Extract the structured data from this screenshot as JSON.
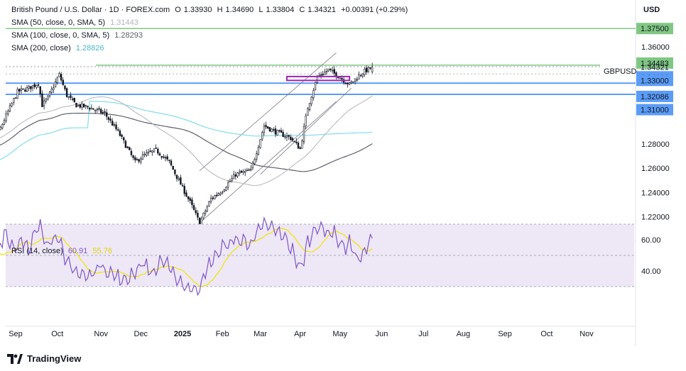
{
  "header": {
    "title": "British Pound / U.S. Dollar · 1D · FOREX.com",
    "ohlc": {
      "open_label": "O",
      "open": "1.33930",
      "high_label": "H",
      "high": "1.34690",
      "low_label": "L",
      "low": "1.33804",
      "close_label": "C",
      "close": "1.34321",
      "change": "+0.00391 (+0.29%)"
    },
    "sma50": {
      "label": "SMA (50, close, 0, SMA, 5)",
      "value": "1.31443"
    },
    "sma100": {
      "label": "SMA (100, close, 0, SMA, 5)",
      "value": "1.28293"
    },
    "sma200": {
      "label": "SMA (200, close)",
      "value": "1.28826"
    }
  },
  "currency": "USD",
  "symbol": "GBPUSD",
  "countdown": "13:53:08",
  "brand": "TradingView",
  "rsi_legend": {
    "label": "RSI (14, close)",
    "value": "60.91",
    "ma_value": "55.76"
  },
  "colors": {
    "bull": "#131722",
    "bear": "#131722",
    "sma50": "#b2b5be",
    "sma100": "#5d606b",
    "sma200": "#80deea",
    "blue_level": "#5b9cf6",
    "green_level": "#81c784",
    "purple_box": "#9c27b0",
    "rsi": "#7e57c2",
    "rsi_ma": "#f2e400",
    "rsi_band": "#ede7f6"
  },
  "chart_data": [
    {
      "type": "candlestick",
      "title": "British Pound / U.S. Dollar · 1D · FOREX.com",
      "x_ticks": [
        "Aug",
        "Sep",
        "Oct",
        "Nov",
        "Dec",
        "2025",
        "Feb",
        "Mar",
        "Apr",
        "May",
        "Jun",
        "Jul",
        "Aug",
        "Sep",
        "Oct",
        "Nov"
      ],
      "x_tick_index": [
        0,
        21,
        43,
        66,
        87,
        109,
        130,
        150,
        171,
        192,
        214,
        236,
        257,
        279,
        301,
        322
      ],
      "y_ticks": [
        "1.22000",
        "1.24000",
        "1.26000",
        "1.28000",
        "1.36000"
      ],
      "ylim": [
        1.2,
        1.385
      ],
      "levels": [
        {
          "label": "1.37500",
          "value": 1.375,
          "kind": "green"
        },
        {
          "label": "1.34483",
          "value": 1.34483,
          "kind": "green"
        },
        {
          "label": "1.34321",
          "value": 1.34321,
          "kind": "price"
        },
        {
          "label": "1.34000",
          "value": 1.34,
          "kind": "blue-label"
        },
        {
          "label": "1.33000",
          "value": 1.33,
          "kind": "blue"
        },
        {
          "label": "1.32086",
          "value": 1.32086,
          "kind": "blue-label"
        },
        {
          "label": "1.31000",
          "value": 1.31,
          "kind": "blue-label"
        }
      ],
      "series": [
        {
          "name": "GBPUSD",
          "anchors_index": [
            0,
            8,
            15,
            22,
            28,
            33,
            35,
            38,
            44,
            48,
            53,
            60,
            68,
            75,
            84,
            88,
            95,
            102,
            107,
            113,
            118,
            124,
            130,
            137,
            145,
            152,
            158,
            166,
            171,
            175,
            180,
            186,
            191,
            197,
            204,
            209
          ],
          "anchors_close": [
            1.295,
            1.275,
            1.3,
            1.323,
            1.326,
            1.33,
            1.312,
            1.318,
            1.337,
            1.32,
            1.312,
            1.31,
            1.305,
            1.29,
            1.265,
            1.27,
            1.275,
            1.265,
            1.25,
            1.232,
            1.215,
            1.235,
            1.242,
            1.255,
            1.258,
            1.295,
            1.29,
            1.285,
            1.276,
            1.31,
            1.335,
            1.341,
            1.336,
            1.329,
            1.339,
            1.3432
          ]
        },
        {
          "name": "SMA 50",
          "value": "1.31443"
        },
        {
          "name": "SMA 100",
          "value": "1.28293"
        },
        {
          "name": "SMA 200",
          "value": "1.28826"
        }
      ],
      "channel_upper": {
        "index": [
          118,
          190
        ],
        "value": [
          1.258,
          1.355
        ]
      },
      "channel_lower": {
        "index": [
          118,
          190
        ],
        "value": [
          1.215,
          1.315
        ]
      },
      "channel_mid": {
        "index": [
          150,
          198
        ],
        "value": [
          1.255,
          1.326
        ]
      },
      "purple_box": {
        "index": [
          164,
          197
        ],
        "value": [
          1.3323,
          1.3355
        ]
      }
    },
    {
      "type": "line",
      "title": "RSI (14, close)",
      "y_ticks": [
        "40.00",
        "60.00"
      ],
      "ylim": [
        25,
        75
      ],
      "band": [
        30,
        70
      ],
      "middle": 50,
      "series": [
        {
          "name": "RSI",
          "value": "60.91",
          "anchors_index": [
            0,
            4,
            8,
            12,
            15,
            20,
            24,
            28,
            31,
            34,
            38,
            43,
            47,
            51,
            55,
            60,
            65,
            70,
            78,
            84,
            88,
            94,
            98,
            104,
            108,
            113,
            118,
            124,
            130,
            137,
            145,
            152,
            158,
            164,
            168,
            171,
            175,
            180,
            185,
            188,
            191,
            194,
            197,
            200,
            203,
            206,
            209
          ],
          "anchors_value": [
            62,
            52,
            38,
            54,
            65,
            55,
            60,
            52,
            64,
            70,
            57,
            64,
            46,
            42,
            38,
            36,
            44,
            40,
            33,
            40,
            45,
            38,
            48,
            38,
            33,
            28,
            30,
            46,
            55,
            60,
            58,
            70,
            66,
            60,
            50,
            40,
            58,
            70,
            64,
            66,
            60,
            55,
            58,
            50,
            48,
            54,
            60.91
          ]
        },
        {
          "name": "RSI-based MA",
          "value": "55.76"
        }
      ]
    }
  ]
}
